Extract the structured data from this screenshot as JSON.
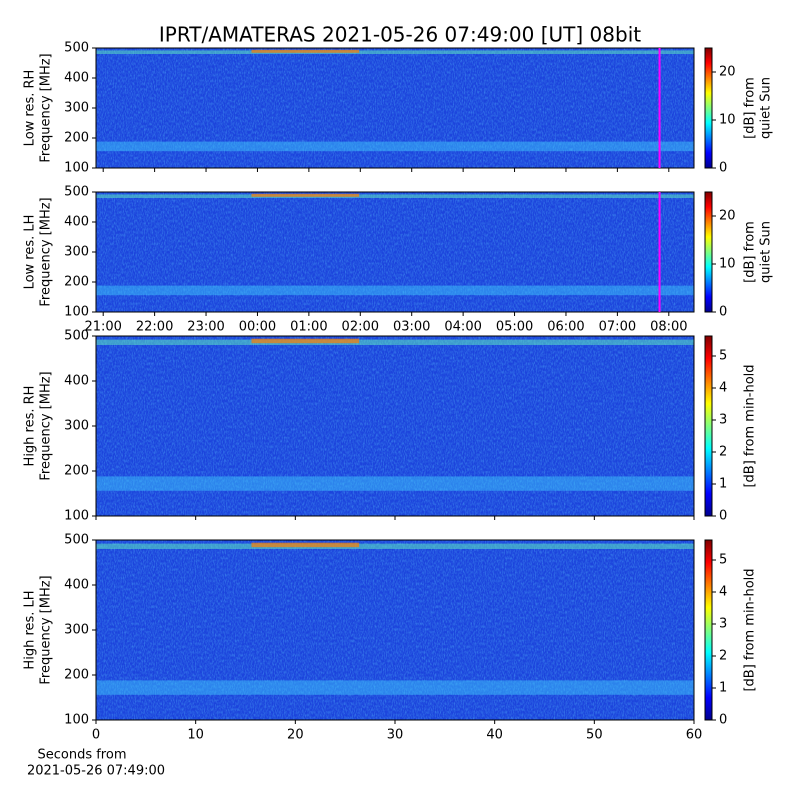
{
  "chart_data": [
    {
      "type": "heatmap",
      "title": "IPRT/AMATERAS 2021-05-26 07:49:00 [UT]   08bit",
      "ylabel": [
        "Low res. RH",
        "Frequency [MHz]"
      ],
      "xlim": [
        -3.14,
        8.49
      ],
      "xticks": [
        -3,
        -2,
        -1,
        0,
        1,
        2,
        3,
        4,
        5,
        6,
        7,
        8
      ],
      "ylim": [
        100,
        500
      ],
      "yticks": [
        100,
        200,
        300,
        400,
        500
      ],
      "marker_x": 7.82,
      "marker_color": "#ff00ff",
      "colormap": "jet",
      "clim": [
        0,
        25
      ],
      "cticks": [
        0,
        10,
        20
      ],
      "colorbar_label": [
        "[dB] from",
        "quiet Sun"
      ]
    },
    {
      "type": "heatmap",
      "ylabel": [
        "Low res. LH",
        "Frequency [MHz]"
      ],
      "xlim": [
        -3.14,
        8.49
      ],
      "xticks": [
        {
          "value": -3,
          "label": "21:00"
        },
        {
          "value": -2,
          "label": "22:00"
        },
        {
          "value": -1,
          "label": "23:00"
        },
        {
          "value": 0,
          "label": "00:00"
        },
        {
          "value": 1,
          "label": "01:00"
        },
        {
          "value": 2,
          "label": "02:00"
        },
        {
          "value": 3,
          "label": "03:00"
        },
        {
          "value": 4,
          "label": "04:00"
        },
        {
          "value": 5,
          "label": "05:00"
        },
        {
          "value": 6,
          "label": "06:00"
        },
        {
          "value": 7,
          "label": "07:00"
        },
        {
          "value": 8,
          "label": "08:00"
        }
      ],
      "ylim": [
        100,
        500
      ],
      "yticks": [
        100,
        200,
        300,
        400,
        500
      ],
      "marker_x": 7.82,
      "marker_color": "#ff00ff",
      "colormap": "jet",
      "clim": [
        0,
        25
      ],
      "cticks": [
        0,
        10,
        20
      ],
      "colorbar_label": [
        "[dB] from",
        "quiet Sun"
      ]
    },
    {
      "type": "heatmap",
      "ylabel": [
        "High res. RH",
        "Frequency [MHz]"
      ],
      "xlim": [
        0,
        60
      ],
      "xticks": [
        0,
        10,
        20,
        30,
        40,
        50,
        60
      ],
      "ylim": [
        100,
        500
      ],
      "yticks": [
        100,
        200,
        300,
        400,
        500
      ],
      "colormap": "jet",
      "clim": [
        0,
        5.625
      ],
      "cticks": [
        0,
        1,
        2,
        3,
        4,
        5
      ],
      "colorbar_label": [
        "[dB] from min-hold"
      ]
    },
    {
      "type": "heatmap",
      "ylabel": [
        "High res. LH",
        "Frequency [MHz]"
      ],
      "xlabel": [
        "Seconds from",
        "2021-05-26 07:49:00"
      ],
      "xlim": [
        0,
        60
      ],
      "xticks": [
        {
          "value": 0,
          "label": "0"
        },
        {
          "value": 10,
          "label": "10"
        },
        {
          "value": 20,
          "label": "20"
        },
        {
          "value": 30,
          "label": "30"
        },
        {
          "value": 40,
          "label": "40"
        },
        {
          "value": 50,
          "label": "50"
        },
        {
          "value": 60,
          "label": "60"
        }
      ],
      "ylim": [
        100,
        500
      ],
      "yticks": [
        100,
        200,
        300,
        400,
        500
      ],
      "colormap": "jet",
      "clim": [
        0,
        5.625
      ],
      "cticks": [
        0,
        1,
        2,
        3,
        4,
        5
      ],
      "colorbar_label": [
        "[dB] from min-hold"
      ]
    }
  ]
}
